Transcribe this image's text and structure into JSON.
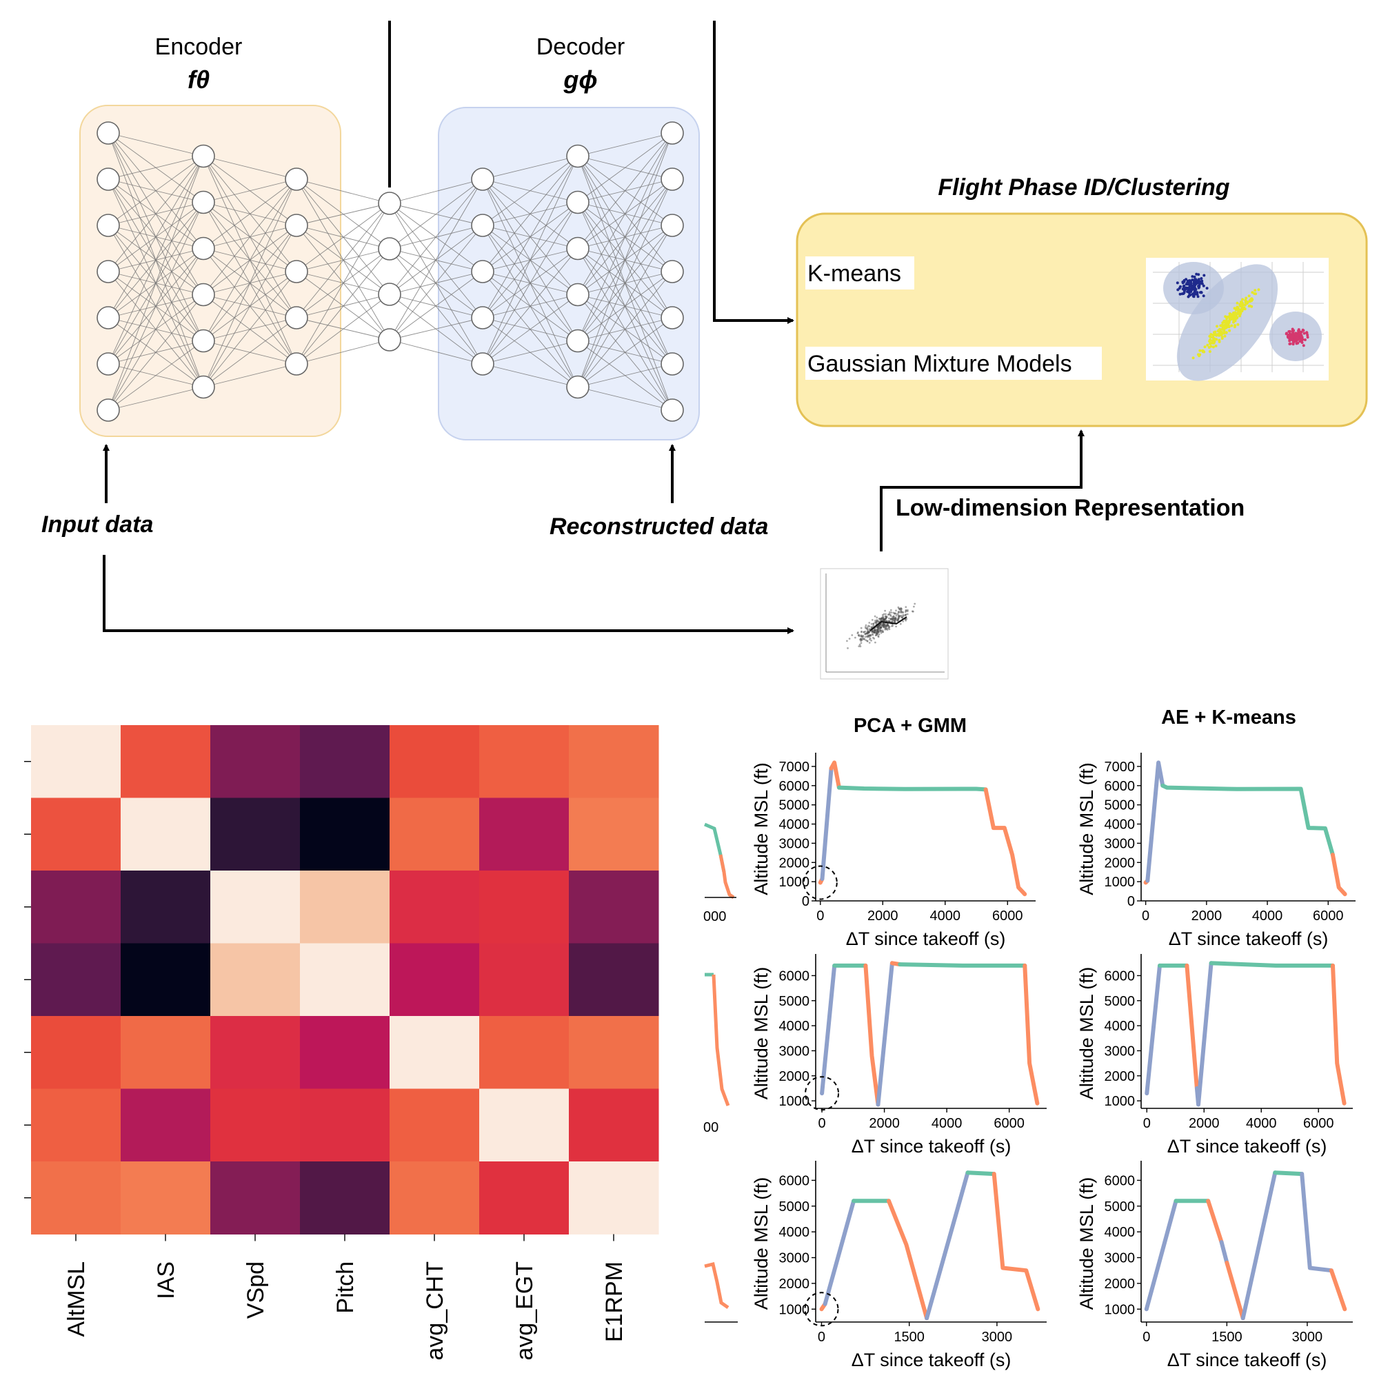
{
  "colors": {
    "encoder_fill": "#fdf1e4",
    "encoder_stroke": "#f3d79c",
    "decoder_fill": "#e8eefb",
    "decoder_stroke": "#c6d2ee",
    "cluster_fill": "#fdeeb2",
    "cluster_stroke": "#e4c155",
    "phase_climb": "#8ea0cb",
    "phase_cruise": "#66c2a5",
    "phase_descent": "#fc8d62"
  },
  "diagram": {
    "encoder_title": "Encoder",
    "encoder_symbol": "fθ",
    "decoder_title": "Decoder",
    "decoder_symbol": "gϕ",
    "input_label": "Input data",
    "reconstructed_label": "Reconstructed data",
    "low_dim_label": "Low-dimension Representation",
    "cluster_title": "Flight Phase ID/Clustering",
    "cluster_methods": [
      "K-means",
      "Gaussian Mixture Models"
    ],
    "encoder_layers": [
      7,
      6,
      5
    ],
    "bottleneck_nodes": 4,
    "decoder_layers": [
      5,
      6,
      7
    ]
  },
  "heatmap": {
    "labels": [
      "AltMSL",
      "IAS",
      "VSpd",
      "Pitch",
      "avg_CHT",
      "avg_EGT",
      "E1RPM"
    ],
    "colors": [
      [
        "#fbeade",
        "#ec523f",
        "#7f1c54",
        "#5f1a50",
        "#ea4c3b",
        "#ef5f42",
        "#f1704a"
      ],
      [
        "#ec523f",
        "#fbeade",
        "#2d1537",
        "#03051a",
        "#f06a47",
        "#b31b59",
        "#f37c52"
      ],
      [
        "#7f1c54",
        "#2d1537",
        "#fbeade",
        "#f6c5a6",
        "#dc2d45",
        "#e0313f",
        "#841d55"
      ],
      [
        "#5f1a50",
        "#03051a",
        "#f6c5a6",
        "#fbeade",
        "#bd1759",
        "#dd2f42",
        "#521847"
      ],
      [
        "#ea4c3b",
        "#f06a47",
        "#dc2d45",
        "#bd1759",
        "#fbeade",
        "#ef5f42",
        "#f1704a"
      ],
      [
        "#ef5f42",
        "#b31b59",
        "#e0313f",
        "#dd2f42",
        "#ef5f42",
        "#fbeade",
        "#e0313f"
      ],
      [
        "#f1704a",
        "#f37c52",
        "#841d55",
        "#521847",
        "#f1704a",
        "#e0313f",
        "#fbeade"
      ]
    ]
  },
  "chart_data": [
    {
      "type": "line",
      "title": "PCA + GMM",
      "xlabel": "ΔT since takeoff (s)",
      "ylabel": "Altitude MSL (ft)",
      "xlim": [
        -150,
        6900
      ],
      "ylim": [
        0,
        7500
      ],
      "xticks": [
        0,
        2000,
        4000,
        6000
      ],
      "yticks": [
        0,
        1000,
        2000,
        3000,
        4000,
        5000,
        6000,
        7000
      ],
      "segments": [
        {
          "phase": "descent",
          "points": [
            [
              0,
              950
            ],
            [
              60,
              1150
            ]
          ]
        },
        {
          "phase": "climb",
          "points": [
            [
              60,
              1150
            ],
            [
              350,
              6900
            ]
          ]
        },
        {
          "phase": "descent",
          "points": [
            [
              350,
              6900
            ],
            [
              450,
              7200
            ],
            [
              600,
              5900
            ]
          ]
        },
        {
          "phase": "cruise",
          "points": [
            [
              600,
              5900
            ],
            [
              1400,
              5850
            ],
            [
              2700,
              5820
            ],
            [
              5000,
              5830
            ],
            [
              5300,
              5800
            ]
          ]
        },
        {
          "phase": "descent",
          "points": [
            [
              5300,
              5800
            ],
            [
              5550,
              3800
            ],
            [
              5900,
              3800
            ],
            [
              6150,
              2400
            ],
            [
              6350,
              700
            ],
            [
              6550,
              350
            ]
          ]
        }
      ]
    },
    {
      "type": "line",
      "title": "AE + K-means",
      "xlabel": "ΔT since takeoff (s)",
      "ylabel": "Altitude MSL (ft)",
      "xlim": [
        -150,
        6900
      ],
      "ylim": [
        0,
        7500
      ],
      "xticks": [
        0,
        2000,
        4000,
        6000
      ],
      "yticks": [
        0,
        1000,
        2000,
        3000,
        4000,
        5000,
        6000,
        7000
      ],
      "segments": [
        {
          "phase": "descent",
          "points": [
            [
              0,
              950
            ],
            [
              60,
              1050
            ]
          ]
        },
        {
          "phase": "climb",
          "points": [
            [
              60,
              1050
            ],
            [
              420,
              7200
            ],
            [
              560,
              6000
            ]
          ]
        },
        {
          "phase": "cruise",
          "points": [
            [
              560,
              6000
            ],
            [
              700,
              5900
            ],
            [
              3000,
              5820
            ],
            [
              5100,
              5830
            ],
            [
              5350,
              3800
            ],
            [
              5900,
              3780
            ],
            [
              6150,
              2400
            ]
          ]
        },
        {
          "phase": "descent",
          "points": [
            [
              6150,
              2400
            ],
            [
              6350,
              700
            ],
            [
              6550,
              350
            ]
          ]
        }
      ]
    },
    {
      "type": "line",
      "title": "",
      "xlabel": "ΔT since takeoff (s)",
      "ylabel": "Altitude MSL (ft)",
      "xlim": [
        -200,
        7200
      ],
      "ylim": [
        700,
        6700
      ],
      "xticks": [
        0,
        2000,
        4000,
        6000
      ],
      "yticks": [
        1000,
        2000,
        3000,
        4000,
        5000,
        6000
      ],
      "segments": [
        {
          "phase": "climb",
          "points": [
            [
              0,
              1300
            ],
            [
              400,
              6400
            ]
          ]
        },
        {
          "phase": "cruise",
          "points": [
            [
              400,
              6400
            ],
            [
              1400,
              6400
            ]
          ]
        },
        {
          "phase": "descent",
          "points": [
            [
              1400,
              6400
            ],
            [
              1600,
              2800
            ],
            [
              1800,
              850
            ]
          ]
        },
        {
          "phase": "climb",
          "points": [
            [
              1800,
              850
            ],
            [
              2250,
              6500
            ]
          ]
        },
        {
          "phase": "descent",
          "points": [
            [
              2250,
              6500
            ],
            [
              2500,
              6450
            ]
          ]
        },
        {
          "phase": "cruise",
          "points": [
            [
              2500,
              6450
            ],
            [
              4500,
              6400
            ],
            [
              6500,
              6400
            ]
          ]
        },
        {
          "phase": "descent",
          "points": [
            [
              6500,
              6400
            ],
            [
              6650,
              2500
            ],
            [
              6900,
              900
            ]
          ]
        }
      ]
    },
    {
      "type": "line",
      "title": "",
      "xlabel": "ΔT since takeoff (s)",
      "ylabel": "Altitude MSL (ft)",
      "xlim": [
        -200,
        7200
      ],
      "ylim": [
        700,
        6700
      ],
      "xticks": [
        0,
        2000,
        4000,
        6000
      ],
      "yticks": [
        1000,
        2000,
        3000,
        4000,
        5000,
        6000
      ],
      "segments": [
        {
          "phase": "climb",
          "points": [
            [
              0,
              1300
            ],
            [
              450,
              6400
            ]
          ]
        },
        {
          "phase": "cruise",
          "points": [
            [
              450,
              6400
            ],
            [
              1400,
              6400
            ]
          ]
        },
        {
          "phase": "descent",
          "points": [
            [
              1400,
              6400
            ],
            [
              1750,
              1500
            ]
          ]
        },
        {
          "phase": "climb",
          "points": [
            [
              1750,
              1500
            ],
            [
              1800,
              850
            ],
            [
              2250,
              6500
            ]
          ]
        },
        {
          "phase": "cruise",
          "points": [
            [
              2250,
              6500
            ],
            [
              4500,
              6400
            ],
            [
              6500,
              6400
            ]
          ]
        },
        {
          "phase": "descent",
          "points": [
            [
              6500,
              6400
            ],
            [
              6650,
              2500
            ],
            [
              6900,
              900
            ]
          ]
        }
      ]
    },
    {
      "type": "line",
      "title": "",
      "xlabel": "ΔT since takeoff (s)",
      "ylabel": "Altitude MSL (ft)",
      "xlim": [
        -100,
        3850
      ],
      "ylim": [
        500,
        6600
      ],
      "xticks": [
        0,
        1500,
        3000
      ],
      "yticks": [
        1000,
        2000,
        3000,
        4000,
        5000,
        6000
      ],
      "segments": [
        {
          "phase": "descent",
          "points": [
            [
              0,
              1000
            ],
            [
              60,
              1200
            ]
          ]
        },
        {
          "phase": "climb",
          "points": [
            [
              60,
              1200
            ],
            [
              550,
              5200
            ]
          ]
        },
        {
          "phase": "cruise",
          "points": [
            [
              550,
              5200
            ],
            [
              1150,
              5200
            ]
          ]
        },
        {
          "phase": "descent",
          "points": [
            [
              1150,
              5200
            ],
            [
              1450,
              3500
            ],
            [
              1800,
              650
            ]
          ]
        },
        {
          "phase": "climb",
          "points": [
            [
              1800,
              650
            ],
            [
              2500,
              6300
            ]
          ]
        },
        {
          "phase": "cruise",
          "points": [
            [
              2500,
              6300
            ],
            [
              2950,
              6250
            ]
          ]
        },
        {
          "phase": "descent",
          "points": [
            [
              2950,
              6250
            ],
            [
              3100,
              2600
            ],
            [
              3500,
              2500
            ],
            [
              3700,
              1000
            ]
          ]
        }
      ]
    },
    {
      "type": "line",
      "title": "",
      "xlabel": "ΔT since takeoff (s)",
      "ylabel": "Altitude MSL (ft)",
      "xlim": [
        -100,
        3850
      ],
      "ylim": [
        500,
        6600
      ],
      "xticks": [
        0,
        1500,
        3000
      ],
      "yticks": [
        1000,
        2000,
        3000,
        4000,
        5000,
        6000
      ],
      "segments": [
        {
          "phase": "climb",
          "points": [
            [
              0,
              1000
            ],
            [
              550,
              5200
            ]
          ]
        },
        {
          "phase": "cruise",
          "points": [
            [
              550,
              5200
            ],
            [
              1150,
              5200
            ]
          ]
        },
        {
          "phase": "descent",
          "points": [
            [
              1150,
              5200
            ],
            [
              1400,
              3600
            ]
          ]
        },
        {
          "phase": "climb",
          "points": [
            [
              1400,
              3600
            ],
            [
              1500,
              2800
            ]
          ]
        },
        {
          "phase": "descent",
          "points": [
            [
              1500,
              2800
            ],
            [
              1800,
              650
            ]
          ]
        },
        {
          "phase": "climb",
          "points": [
            [
              1800,
              650
            ],
            [
              2400,
              6300
            ]
          ]
        },
        {
          "phase": "cruise",
          "points": [
            [
              2400,
              6300
            ],
            [
              2900,
              6250
            ]
          ]
        },
        {
          "phase": "climb",
          "points": [
            [
              2900,
              6250
            ],
            [
              3050,
              2600
            ],
            [
              3450,
              2500
            ]
          ]
        },
        {
          "phase": "descent",
          "points": [
            [
              3450,
              2500
            ],
            [
              3700,
              1000
            ]
          ]
        }
      ]
    }
  ],
  "partial_panels": {
    "tick_labels": [
      "000",
      "00"
    ]
  }
}
